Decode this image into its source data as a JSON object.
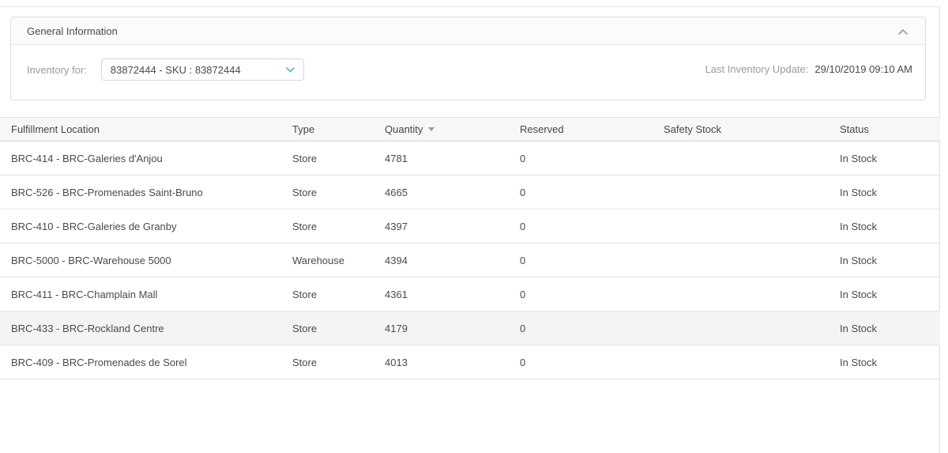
{
  "panel": {
    "title": "General Information",
    "inventory_for_label": "Inventory for:",
    "sku_dropdown_value": "83872444 - SKU : 83872444",
    "last_update_label": "Last Inventory Update:",
    "last_update_value": "29/10/2019 09:10 AM",
    "collapse_icon": "chevron-up",
    "dropdown_icon": "chevron-down"
  },
  "table": {
    "column_keys": [
      "location",
      "type",
      "quantity",
      "reserved",
      "safety_stock",
      "status"
    ],
    "columns": [
      {
        "key": "location",
        "label": "Fulfillment Location"
      },
      {
        "key": "type",
        "label": "Type"
      },
      {
        "key": "quantity",
        "label": "Quantity",
        "sorted": "desc"
      },
      {
        "key": "reserved",
        "label": "Reserved"
      },
      {
        "key": "safety_stock",
        "label": "Safety Stock"
      },
      {
        "key": "status",
        "label": "Status"
      }
    ],
    "rows": [
      {
        "location": "BRC-414 - BRC-Galeries d'Anjou",
        "type": "Store",
        "quantity": "4781",
        "reserved": "0",
        "safety_stock": "",
        "status": "In Stock",
        "highlighted": false
      },
      {
        "location": "BRC-526 - BRC-Promenades Saint-Bruno",
        "type": "Store",
        "quantity": "4665",
        "reserved": "0",
        "safety_stock": "",
        "status": "In Stock",
        "highlighted": false
      },
      {
        "location": "BRC-410 - BRC-Galeries de Granby",
        "type": "Store",
        "quantity": "4397",
        "reserved": "0",
        "safety_stock": "",
        "status": "In Stock",
        "highlighted": false
      },
      {
        "location": "BRC-5000 - BRC-Warehouse 5000",
        "type": "Warehouse",
        "quantity": "4394",
        "reserved": "0",
        "safety_stock": "",
        "status": "In Stock",
        "highlighted": false
      },
      {
        "location": "BRC-411 - BRC-Champlain Mall",
        "type": "Store",
        "quantity": "4361",
        "reserved": "0",
        "safety_stock": "",
        "status": "In Stock",
        "highlighted": false
      },
      {
        "location": "BRC-433 - BRC-Rockland Centre",
        "type": "Store",
        "quantity": "4179",
        "reserved": "0",
        "safety_stock": "",
        "status": "In Stock",
        "highlighted": true
      },
      {
        "location": "BRC-409 - BRC-Promenades de Sorel",
        "type": "Store",
        "quantity": "4013",
        "reserved": "0",
        "safety_stock": "",
        "status": "In Stock",
        "highlighted": false
      }
    ]
  },
  "colors": {
    "accent_blue": "#58b0e2",
    "table_header_bg": "#f7f7f7",
    "panel_header_bg": "#fbfbfb",
    "highlight_row_bg": "#f4f4f4",
    "border": "#e3e3e3",
    "text": "#4a4a4a",
    "muted_text": "#9b9b9b"
  }
}
